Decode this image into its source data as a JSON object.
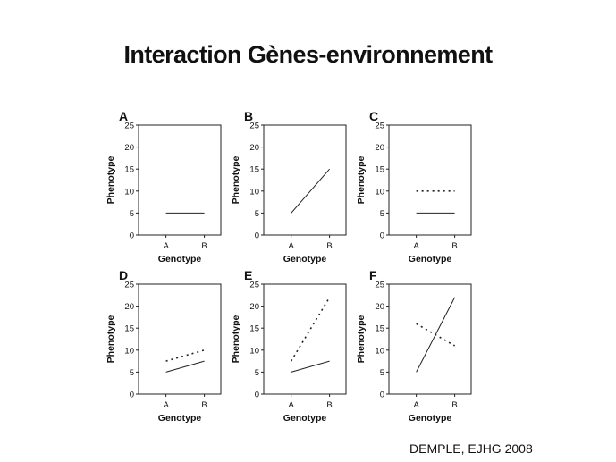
{
  "title": "Interaction Gènes-environnement",
  "citation": "DEMPLE, EJHG 2008",
  "chart_data": [
    {
      "type": "line",
      "panel": "A",
      "categories": [
        "A",
        "B"
      ],
      "xlabel": "Genotype",
      "ylabel": "Phenotype",
      "ylim": [
        0,
        25
      ],
      "yticks": [
        0,
        5,
        10,
        15,
        20,
        25
      ],
      "series": [
        {
          "style": "solid",
          "values": [
            5,
            5
          ]
        }
      ]
    },
    {
      "type": "line",
      "panel": "B",
      "categories": [
        "A",
        "B"
      ],
      "xlabel": "Genotype",
      "ylabel": "Phenotype",
      "ylim": [
        0,
        25
      ],
      "yticks": [
        0,
        5,
        10,
        15,
        20,
        25
      ],
      "series": [
        {
          "style": "solid",
          "values": [
            5,
            15
          ]
        }
      ]
    },
    {
      "type": "line",
      "panel": "C",
      "categories": [
        "A",
        "B"
      ],
      "xlabel": "Genotype",
      "ylabel": "Phenotype",
      "ylim": [
        0,
        25
      ],
      "yticks": [
        0,
        5,
        10,
        15,
        20,
        25
      ],
      "series": [
        {
          "style": "solid",
          "values": [
            5,
            5
          ]
        },
        {
          "style": "dotted",
          "values": [
            10,
            10
          ]
        }
      ]
    },
    {
      "type": "line",
      "panel": "D",
      "categories": [
        "A",
        "B"
      ],
      "xlabel": "Genotype",
      "ylabel": "Phenotype",
      "ylim": [
        0,
        25
      ],
      "yticks": [
        0,
        5,
        10,
        15,
        20,
        25
      ],
      "series": [
        {
          "style": "solid",
          "values": [
            5,
            7.5
          ]
        },
        {
          "style": "dotted",
          "values": [
            7.5,
            10
          ]
        }
      ]
    },
    {
      "type": "line",
      "panel": "E",
      "categories": [
        "A",
        "B"
      ],
      "xlabel": "Genotype",
      "ylabel": "Phenotype",
      "ylim": [
        0,
        25
      ],
      "yticks": [
        0,
        5,
        10,
        15,
        20,
        25
      ],
      "series": [
        {
          "style": "solid",
          "values": [
            5,
            7.5
          ]
        },
        {
          "style": "dotted",
          "values": [
            7.5,
            22
          ]
        }
      ]
    },
    {
      "type": "line",
      "panel": "F",
      "categories": [
        "A",
        "B"
      ],
      "xlabel": "Genotype",
      "ylabel": "Phenotype",
      "ylim": [
        0,
        25
      ],
      "yticks": [
        0,
        5,
        10,
        15,
        20,
        25
      ],
      "series": [
        {
          "style": "solid",
          "values": [
            5,
            22
          ]
        },
        {
          "style": "dotted",
          "values": [
            16,
            11
          ]
        }
      ]
    }
  ]
}
